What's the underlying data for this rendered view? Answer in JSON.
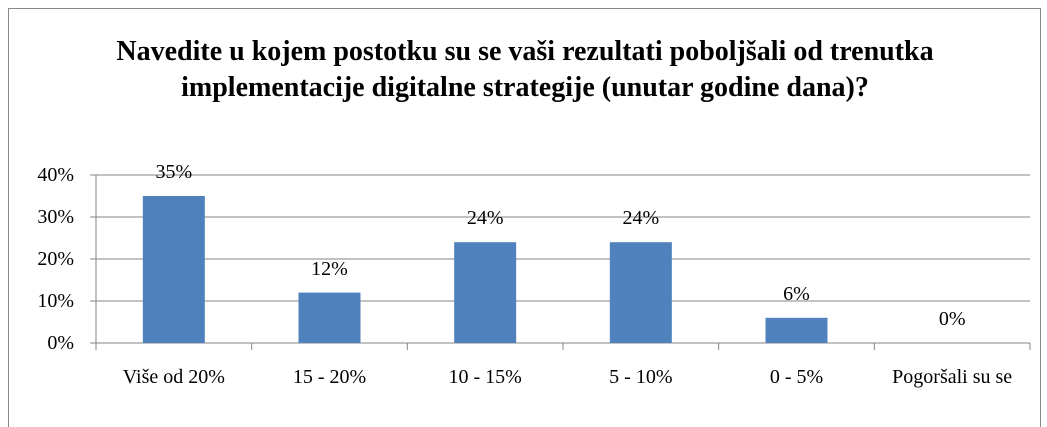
{
  "chart_data": {
    "type": "bar",
    "title": "Navedite u kojem postotku su se vaši rezultati poboljšali od trenutka implementacije digitalne strategije (unutar godine dana)?",
    "categories": [
      "Više od 20%",
      "15 - 20%",
      "10 - 15%",
      "5 - 10%",
      "0 - 5%",
      "Pogoršali su se"
    ],
    "values": [
      35,
      12,
      24,
      24,
      6,
      0
    ],
    "value_labels": [
      "35%",
      "12%",
      "24%",
      "24%",
      "6%",
      "0%"
    ],
    "color": "#4f81bd",
    "ylim": [
      0,
      40
    ],
    "yticks": [
      {
        "value": 0,
        "label": "0%"
      },
      {
        "value": 10,
        "label": "10%"
      },
      {
        "value": 20,
        "label": "20%"
      },
      {
        "value": 30,
        "label": "30%"
      },
      {
        "value": 40,
        "label": "40%"
      }
    ],
    "grid": true
  }
}
